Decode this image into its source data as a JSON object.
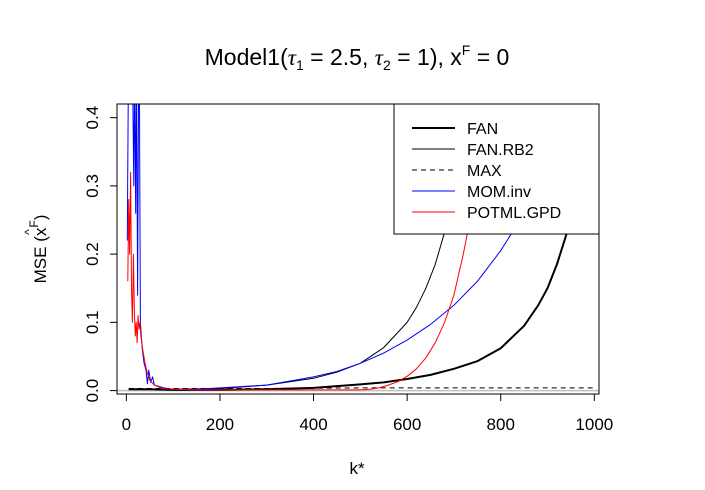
{
  "chart_data": {
    "type": "line",
    "title": {
      "prefix": "Model1",
      "tau1_label": "τ",
      "tau1_sub": "1",
      "tau1_value": "2.5",
      "tau2_label": "τ",
      "tau2_sub": "2",
      "tau2_value": "1",
      "x_label": "x",
      "x_sup": "F",
      "x_value": "0"
    },
    "xlabel": "k*",
    "ylabel": {
      "prefix": "MSE",
      "hat": "^",
      "x": "x",
      "sup": "F"
    },
    "xlim": [
      -20,
      1010
    ],
    "ylim": [
      -0.005,
      0.42
    ],
    "xticks": [
      0,
      200,
      400,
      600,
      800,
      1000
    ],
    "xtick_labels": [
      "0",
      "200",
      "400",
      "600",
      "800",
      "1000"
    ],
    "yticks": [
      0.0,
      0.1,
      0.2,
      0.3,
      0.4
    ],
    "ytick_labels": [
      "0.0",
      "0.1",
      "0.2",
      "0.3",
      "0.4"
    ],
    "reference_line": {
      "y": 0,
      "color": "#bebebe"
    },
    "legend_position": "top-right",
    "series": [
      {
        "name": "FAN",
        "color": "#000000",
        "width": 2,
        "dash": "",
        "x": [
          5,
          50,
          100,
          200,
          300,
          400,
          500,
          550,
          600,
          650,
          700,
          750,
          800,
          850,
          880,
          900,
          920,
          940,
          960
        ],
        "y": [
          0.002,
          0.002,
          0.001,
          0.001,
          0.002,
          0.004,
          0.009,
          0.012,
          0.017,
          0.023,
          0.032,
          0.043,
          0.062,
          0.095,
          0.125,
          0.15,
          0.185,
          0.228,
          0.29
        ]
      },
      {
        "name": "FAN.RB2",
        "color": "#000000",
        "width": 1,
        "dash": "",
        "x": [
          5,
          50,
          100,
          200,
          300,
          400,
          450,
          500,
          550,
          600,
          620,
          640,
          660,
          680,
          700
        ],
        "y": [
          0.002,
          0.002,
          0.002,
          0.003,
          0.008,
          0.018,
          0.027,
          0.04,
          0.063,
          0.1,
          0.122,
          0.15,
          0.185,
          0.232,
          0.29
        ]
      },
      {
        "name": "MAX",
        "color": "#000000",
        "width": 1,
        "dash": "5,4",
        "x": [
          5,
          100,
          300,
          500,
          700,
          1000
        ],
        "y": [
          0.003,
          0.003,
          0.003,
          0.004,
          0.004,
          0.004
        ]
      },
      {
        "name": "MOM.inv",
        "color": "#0000ff",
        "width": 1,
        "dash": "",
        "x": [
          2,
          4,
          6,
          8,
          9,
          10,
          12,
          14,
          16,
          17,
          18,
          20,
          21,
          22,
          24,
          26,
          28,
          30,
          34,
          38,
          42,
          45,
          48,
          52,
          56,
          60,
          70,
          80,
          100,
          150,
          200,
          300,
          400,
          450,
          500,
          550,
          600,
          650,
          700,
          750,
          800,
          850,
          880
        ],
        "y": [
          0.22,
          0.42,
          0.42,
          0.42,
          0.42,
          0.42,
          0.42,
          0.42,
          0.3,
          0.42,
          0.42,
          0.26,
          0.42,
          0.42,
          0.14,
          0.42,
          0.42,
          0.1,
          0.06,
          0.04,
          0.03,
          0.01,
          0.03,
          0.012,
          0.02,
          0.008,
          0.006,
          0.004,
          0.002,
          0.002,
          0.004,
          0.008,
          0.02,
          0.028,
          0.04,
          0.055,
          0.074,
          0.097,
          0.125,
          0.16,
          0.205,
          0.26,
          0.3
        ]
      },
      {
        "name": "POTML.GPD",
        "color": "#ff0000",
        "width": 1,
        "dash": "",
        "x": [
          3,
          5,
          7,
          9,
          11,
          13,
          15,
          17,
          19,
          21,
          23,
          25,
          27,
          29,
          31,
          35,
          40,
          45,
          50,
          60,
          70,
          80,
          100,
          150,
          200,
          300,
          400,
          500,
          520,
          540,
          560,
          580,
          600,
          620,
          640,
          660,
          680,
          700,
          720,
          740
        ],
        "y": [
          0.16,
          0.28,
          0.2,
          0.32,
          0.15,
          0.1,
          0.2,
          0.12,
          0.08,
          0.1,
          0.07,
          0.11,
          0.09,
          0.1,
          0.08,
          0.06,
          0.04,
          0.025,
          0.015,
          0.008,
          0.005,
          0.003,
          0.002,
          0.001,
          0.001,
          0.001,
          0.001,
          0.001,
          0.002,
          0.004,
          0.008,
          0.013,
          0.021,
          0.032,
          0.048,
          0.07,
          0.1,
          0.14,
          0.2,
          0.27
        ]
      }
    ]
  }
}
